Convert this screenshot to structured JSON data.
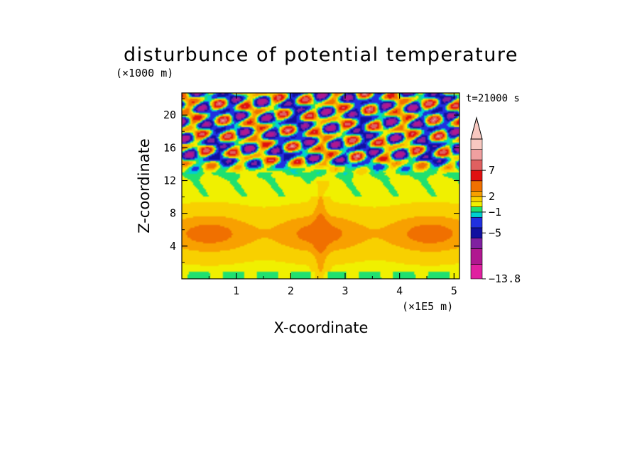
{
  "chart_data": {
    "type": "heatmap",
    "title": "disturbunce of potential temperature",
    "ylabel": "Z-coordinate",
    "xlabel": "X-coordinate",
    "y_unit": "(×1000 m)",
    "x_unit": "(×1E5 m)",
    "time_label": "t=21000 s",
    "xlim": [
      0,
      5.1
    ],
    "ylim": [
      0,
      22.7
    ],
    "x_ticks": [
      "1",
      "2",
      "3",
      "4",
      "5"
    ],
    "y_ticks": [
      "4",
      "8",
      "12",
      "16",
      "20"
    ],
    "x_tick_values": [
      1,
      2,
      3,
      4,
      5
    ],
    "y_tick_values": [
      4,
      8,
      12,
      16,
      20
    ],
    "colorbar_labels": [
      "7",
      "2",
      "−1",
      "−5",
      "−13.8"
    ],
    "colorbar_label_values": [
      7,
      2,
      -1,
      -5,
      -13.8
    ],
    "colorbar_levels": [
      {
        "from": -13.8,
        "to": -11,
        "color": "#e020a0"
      },
      {
        "from": -11,
        "to": -8,
        "color": "#b01890"
      },
      {
        "from": -8,
        "to": -6,
        "color": "#8020a0"
      },
      {
        "from": -6,
        "to": -4,
        "color": "#1010a0"
      },
      {
        "from": -4,
        "to": -2,
        "color": "#2030e0"
      },
      {
        "from": -2,
        "to": -1,
        "color": "#00d0d0"
      },
      {
        "from": -1,
        "to": 0,
        "color": "#20e070"
      },
      {
        "from": 0,
        "to": 1,
        "color": "#f0f000"
      },
      {
        "from": 1,
        "to": 2,
        "color": "#f8d000"
      },
      {
        "from": 2,
        "to": 3,
        "color": "#f8a000"
      },
      {
        "from": 3,
        "to": 5,
        "color": "#f07000"
      },
      {
        "from": 5,
        "to": 7,
        "color": "#e01010"
      },
      {
        "from": 7,
        "to": 9,
        "color": "#e06060"
      },
      {
        "from": 9,
        "to": 11,
        "color": "#f0a0a0"
      },
      {
        "from": 11,
        "to": 13,
        "color": "#f8c8c0"
      }
    ],
    "field_description_values": {
      "low_level_band_z": [
        3,
        8
      ],
      "low_level_band_value": 2.5,
      "upper_wave_layer_z": [
        14,
        22.7
      ],
      "upper_wave_amplitude": 9
    }
  }
}
